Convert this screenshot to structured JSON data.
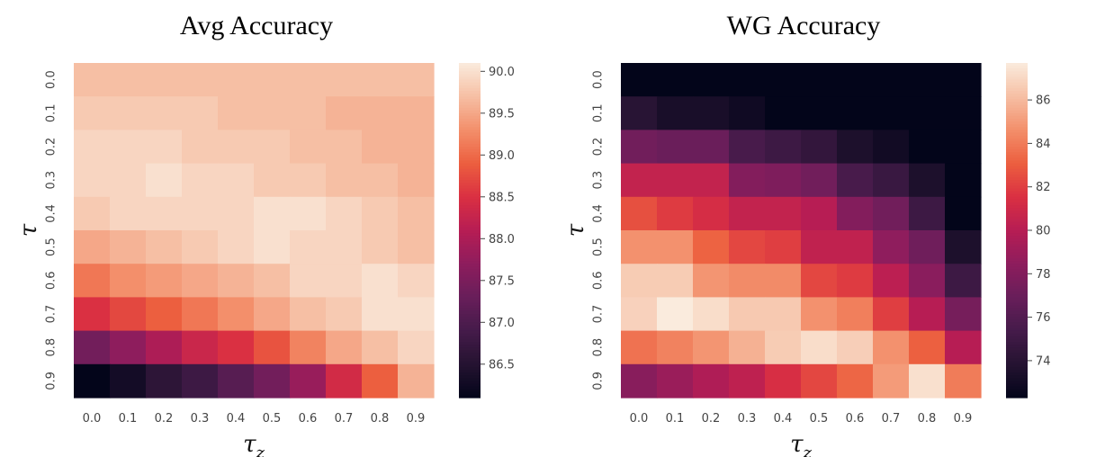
{
  "chart_data": [
    {
      "type": "heatmap",
      "title": "Avg Accuracy",
      "xlabel": "τ_z",
      "ylabel": "τ",
      "x": [
        "0.0",
        "0.1",
        "0.2",
        "0.3",
        "0.4",
        "0.5",
        "0.6",
        "0.7",
        "0.8",
        "0.9"
      ],
      "y": [
        "0.0",
        "0.1",
        "0.2",
        "0.3",
        "0.4",
        "0.5",
        "0.6",
        "0.7",
        "0.8",
        "0.9"
      ],
      "colormap": "rocket",
      "colorbar": {
        "min": 86.1,
        "max": 90.1,
        "ticks": [
          "86.5",
          "87.0",
          "87.5",
          "88.0",
          "88.5",
          "89.0",
          "89.5",
          "90.0"
        ]
      },
      "values": [
        [
          89.7,
          89.7,
          89.7,
          89.7,
          89.7,
          89.7,
          89.7,
          89.7,
          89.7,
          89.7
        ],
        [
          89.8,
          89.8,
          89.8,
          89.8,
          89.7,
          89.7,
          89.7,
          89.6,
          89.6,
          89.6
        ],
        [
          89.9,
          89.9,
          89.9,
          89.8,
          89.8,
          89.8,
          89.7,
          89.7,
          89.6,
          89.6
        ],
        [
          89.9,
          89.9,
          90.0,
          89.9,
          89.9,
          89.8,
          89.8,
          89.7,
          89.7,
          89.6
        ],
        [
          89.8,
          89.9,
          89.9,
          89.9,
          89.9,
          90.0,
          90.0,
          89.9,
          89.8,
          89.7
        ],
        [
          89.5,
          89.6,
          89.7,
          89.8,
          89.9,
          90.0,
          89.9,
          89.9,
          89.8,
          89.7
        ],
        [
          89.1,
          89.3,
          89.4,
          89.5,
          89.6,
          89.7,
          89.9,
          89.9,
          90.0,
          89.9
        ],
        [
          88.5,
          88.7,
          88.9,
          89.1,
          89.3,
          89.5,
          89.7,
          89.8,
          90.0,
          90.0
        ],
        [
          87.4,
          87.7,
          88.0,
          88.3,
          88.5,
          88.8,
          89.2,
          89.5,
          89.7,
          89.9
        ],
        [
          86.1,
          86.3,
          86.6,
          86.8,
          87.1,
          87.4,
          87.8,
          88.4,
          88.9,
          89.6
        ]
      ]
    },
    {
      "type": "heatmap",
      "title": "WG Accuracy",
      "xlabel": "τ_z",
      "ylabel": "τ",
      "x": [
        "0.0",
        "0.1",
        "0.2",
        "0.3",
        "0.4",
        "0.5",
        "0.6",
        "0.7",
        "0.8",
        "0.9"
      ],
      "y": [
        "0.0",
        "0.1",
        "0.2",
        "0.3",
        "0.4",
        "0.5",
        "0.6",
        "0.7",
        "0.8",
        "0.9"
      ],
      "colormap": "rocket",
      "colorbar": {
        "min": 72.3,
        "max": 87.7,
        "ticks": [
          "74",
          "76",
          "78",
          "80",
          "82",
          "84",
          "86"
        ]
      },
      "values": [
        [
          72.3,
          72.3,
          72.3,
          72.3,
          72.3,
          72.3,
          72.3,
          72.3,
          72.3,
          72.3
        ],
        [
          74.0,
          73.3,
          73.3,
          72.9,
          72.3,
          72.3,
          72.3,
          72.3,
          72.3,
          72.3
        ],
        [
          77.3,
          77.0,
          77.0,
          75.5,
          75.0,
          74.5,
          73.5,
          73.0,
          72.3,
          72.3
        ],
        [
          80.5,
          80.5,
          80.5,
          78.0,
          77.8,
          77.3,
          75.5,
          74.8,
          73.5,
          72.3
        ],
        [
          82.6,
          81.9,
          81.3,
          80.5,
          80.5,
          80.0,
          78.0,
          77.3,
          75.0,
          72.3
        ],
        [
          84.7,
          84.7,
          83.2,
          82.3,
          82.0,
          80.4,
          80.4,
          78.5,
          77.2,
          73.5
        ],
        [
          86.6,
          86.6,
          84.8,
          84.5,
          84.5,
          82.3,
          81.9,
          80.2,
          78.3,
          75.0
        ],
        [
          86.8,
          87.7,
          87.2,
          86.5,
          86.5,
          84.7,
          84.1,
          82.0,
          80.0,
          77.5
        ],
        [
          83.7,
          84.2,
          84.8,
          85.7,
          86.6,
          87.2,
          86.7,
          84.7,
          83.1,
          80.0
        ],
        [
          78.2,
          78.9,
          79.7,
          80.3,
          81.4,
          82.3,
          83.3,
          85.0,
          87.3,
          84.0
        ]
      ]
    }
  ]
}
